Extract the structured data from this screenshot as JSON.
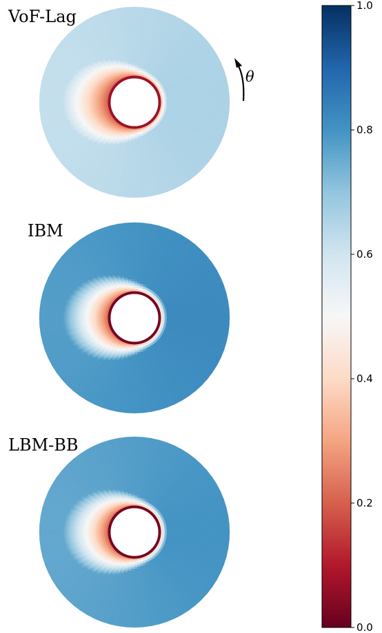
{
  "chart_data": {
    "type": "heatmap",
    "subtype": "annular-polar-field",
    "panels": [
      {
        "name": "VoF-Lag",
        "outer_value": 0.66,
        "inner_ring_value": 0.07,
        "inner_ring_span_deg": 360
      },
      {
        "name": "IBM",
        "outer_value": 0.82,
        "inner_ring_value": 0.02,
        "inner_ring_span_deg": 360
      },
      {
        "name": "LBM-BB",
        "outer_value": 0.8,
        "inner_ring_value": 0.02,
        "inner_ring_span_deg": 360
      }
    ],
    "angle_symbol": "θ",
    "colorbar": {
      "colormap": "RdBu",
      "range": [
        0.0,
        1.0
      ],
      "ticks": [
        0.0,
        0.2,
        0.4,
        0.6,
        0.8,
        1.0
      ],
      "tick_labels": [
        "0.0",
        "0.2",
        "0.4",
        "0.6",
        "0.8",
        "1.0"
      ],
      "orientation": "vertical",
      "placement": "right"
    }
  },
  "colors": {
    "colormap_stops": [
      "#67001f",
      "#b2182b",
      "#d6604d",
      "#f4a582",
      "#fddbc7",
      "#f7f7f7",
      "#d1e5f0",
      "#92c5de",
      "#4393c3",
      "#2166ac",
      "#053061"
    ]
  }
}
